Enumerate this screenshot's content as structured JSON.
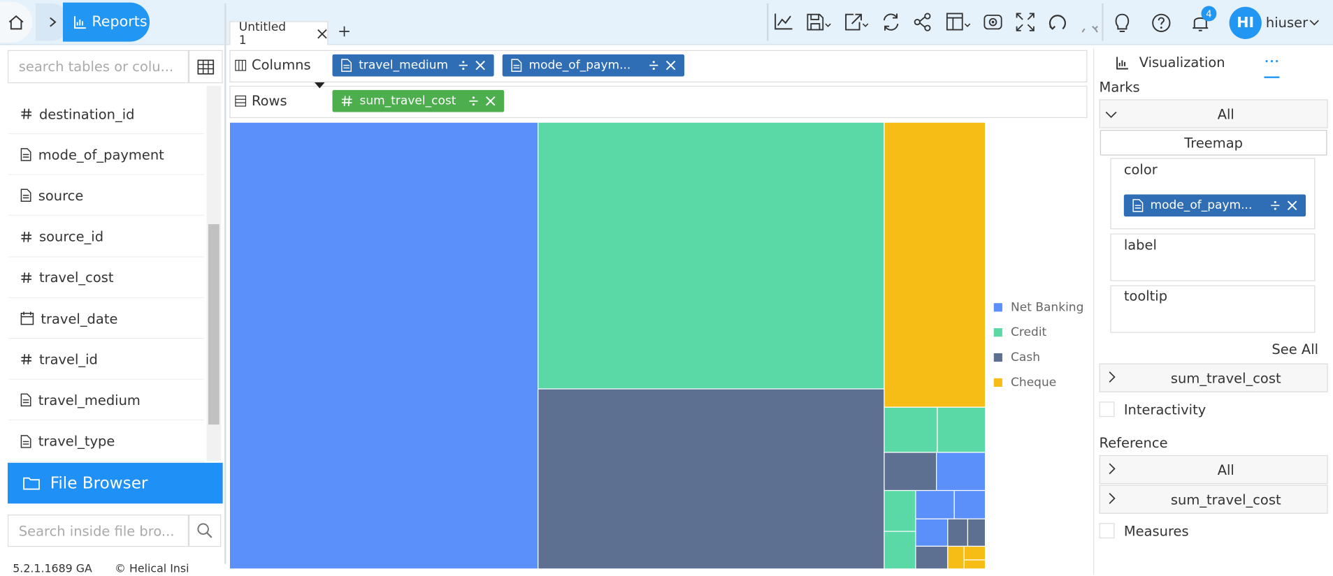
{
  "header": {
    "app": "Reports",
    "tab": "Untitled 1",
    "notifications": "4",
    "user_initials": "HI",
    "user": "hiuser"
  },
  "sidebar": {
    "search_placeholder": "search tables or colu...",
    "fields": [
      {
        "type": "number",
        "name": "destination_id"
      },
      {
        "type": "text",
        "name": "mode_of_payment"
      },
      {
        "type": "text",
        "name": "source"
      },
      {
        "type": "number",
        "name": "source_id"
      },
      {
        "type": "number",
        "name": "travel_cost"
      },
      {
        "type": "date",
        "name": "travel_date"
      },
      {
        "type": "number",
        "name": "travel_id"
      },
      {
        "type": "text",
        "name": "travel_medium"
      },
      {
        "type": "text",
        "name": "travel_type"
      }
    ],
    "file_browser": "File Browser",
    "file_search_placeholder": "Search inside file bro...",
    "version": "5.2.1.1689 GA",
    "copyright": "© Helical Insi"
  },
  "shelves": {
    "columns_label": "Columns",
    "columns": [
      "travel_medium",
      "mode_of_paym..."
    ],
    "rows_label": "Rows",
    "rows": [
      "sum_travel_cost"
    ]
  },
  "panel": {
    "tab": "Visualization",
    "marks": "Marks",
    "all": "All",
    "chart_type": "Treemap",
    "color": "color",
    "color_field": "mode_of_paym...",
    "label": "label",
    "tooltip": "tooltip",
    "see_all": "See All",
    "measure": "sum_travel_cost",
    "interactivity": "Interactivity",
    "reference": "Reference",
    "ref_all": "All",
    "ref_measure": "sum_travel_cost",
    "measures": "Measures"
  },
  "chart_data": {
    "type": "treemap",
    "legend": "right",
    "series": [
      {
        "name": "Net Banking",
        "color": "#5b8ff9"
      },
      {
        "name": "Credit",
        "color": "#5ad8a6"
      },
      {
        "name": "Cash",
        "color": "#5d7092"
      },
      {
        "name": "Cheque",
        "color": "#f6bd16"
      }
    ],
    "leaves": [
      {
        "series": 0,
        "value": 190890
      },
      {
        "series": 1,
        "value": 127866
      },
      {
        "series": 2,
        "value": 86315
      },
      {
        "series": 3,
        "value": 39903
      },
      {
        "series": 1,
        "value": 3318
      },
      {
        "series": 1,
        "value": 3002
      },
      {
        "series": 2,
        "value": 2759
      },
      {
        "series": 0,
        "value": 2581
      },
      {
        "series": 1,
        "value": 1780
      },
      {
        "series": 1,
        "value": 1634
      },
      {
        "series": 0,
        "value": 1520
      },
      {
        "series": 0,
        "value": 1219
      },
      {
        "series": 0,
        "value": 1216
      },
      {
        "series": 2,
        "value": 1007
      },
      {
        "series": 2,
        "value": 759
      },
      {
        "series": 2,
        "value": 667
      },
      {
        "series": 3,
        "value": 513
      },
      {
        "series": 3,
        "value": 400
      },
      {
        "series": 3,
        "value": 265
      }
    ]
  }
}
